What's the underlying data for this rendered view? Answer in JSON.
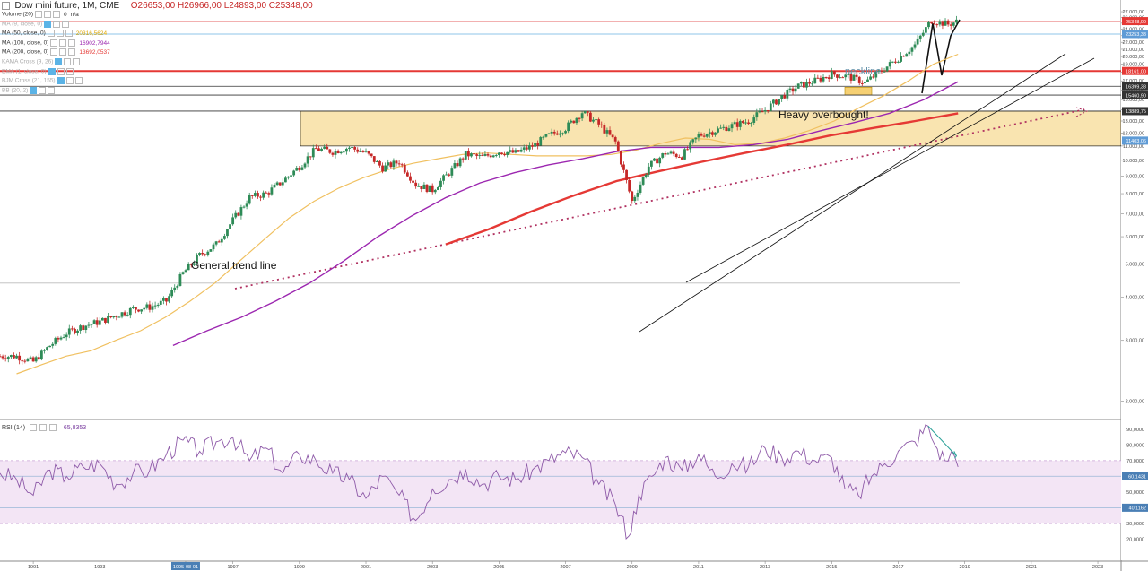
{
  "header": {
    "title": "Dow mini future, 1M, CME",
    "open": "O26653,00",
    "high": "H26966,00",
    "low": "L24893,00",
    "close": "C25348,00"
  },
  "indicators": [
    {
      "label": "Volume (20)",
      "value": "0",
      "value2": "n/a",
      "faded": false
    },
    {
      "label": "MA (9, close, 0)",
      "value": "",
      "faded": true
    },
    {
      "label": "MA (50, close, 0)",
      "value": "20316,5624",
      "color": "#e0a800",
      "faded": false
    },
    {
      "label": "MA (100, close, 0)",
      "value": "16902,7944",
      "color": "#9c27b0",
      "faded": false
    },
    {
      "label": "MA (200, close, 0)",
      "value": "13692,0537",
      "color": "#e53935",
      "faded": false
    },
    {
      "label": "KAMA Cross (9, 26)",
      "value": "",
      "faded": true
    },
    {
      "label": "EMA (1, close, 0)",
      "value": "",
      "faded": true
    },
    {
      "label": "BJM Cross (21, 155)",
      "value": "",
      "faded": true
    },
    {
      "label": "BB (20, 2)",
      "value": "",
      "faded": true
    }
  ],
  "annotations": {
    "neckline": "neckline",
    "overbought": "Heavy overbought!",
    "trend": "General trend line"
  },
  "rsi": {
    "label": "RSI (14)",
    "value": "65,8353"
  },
  "chart_data": {
    "type": "candlestick",
    "title": "Dow mini future, 1M, CME",
    "x_ticks": [
      "1991",
      "1993",
      "1995-08-01",
      "1997",
      "1999",
      "2001",
      "2003",
      "2005",
      "2007",
      "2009",
      "2011",
      "2013",
      "2015",
      "2017",
      "2019",
      "2021",
      "2023"
    ],
    "x_tick_years": [
      1991,
      1993,
      1995.58,
      1997,
      1999,
      2001,
      2003,
      2005,
      2007,
      2009,
      2011,
      2013,
      2015,
      2017,
      2019,
      2021,
      2023
    ],
    "y_ticks": [
      2000,
      3000,
      4000,
      5000,
      6000,
      7000,
      8000,
      9000,
      10000,
      11000,
      12000,
      13000,
      14000,
      15000,
      16000,
      17000,
      18000,
      19000,
      20000,
      21000,
      22000,
      23000,
      24000,
      25000,
      26000,
      27000
    ],
    "price_markers": [
      {
        "value": "25348,00",
        "price": 25348,
        "color": "#e53935"
      },
      {
        "value": "23253,33",
        "price": 23253,
        "color": "#5e9bd6"
      },
      {
        "value": "18161,00",
        "price": 18161,
        "color": "#e53935"
      },
      {
        "value": "16399,38",
        "price": 16399,
        "color": "#333333"
      },
      {
        "value": "15460,90",
        "price": 15461,
        "color": "#333333"
      },
      {
        "value": "13889,75",
        "price": 13890,
        "color": "#333333"
      },
      {
        "value": "11403,06",
        "price": 11403,
        "color": "#5e9bd6"
      }
    ],
    "series": [
      {
        "name": "Dow mini future",
        "type": "candlestick",
        "x": [
          1990.5,
          1991.0,
          1991.5,
          1992.0,
          1992.5,
          1993.0,
          1993.5,
          1994.0,
          1994.5,
          1995.0,
          1995.5,
          1996.0,
          1996.5,
          1997.0,
          1997.5,
          1998.0,
          1998.5,
          1999.0,
          1999.5,
          2000.0,
          2000.5,
          2001.0,
          2001.5,
          2002.0,
          2002.5,
          2003.0,
          2003.5,
          2004.0,
          2004.5,
          2005.0,
          2005.5,
          2006.0,
          2006.5,
          2007.0,
          2007.5,
          2008.0,
          2008.5,
          2009.0,
          2009.5,
          2010.0,
          2010.5,
          2011.0,
          2011.5,
          2012.0,
          2012.5,
          2013.0,
          2013.5,
          2014.0,
          2014.5,
          2015.0,
          2015.5,
          2016.0,
          2016.5,
          2017.0,
          2017.5,
          2018.0,
          2018.5,
          2018.8
        ],
        "y": [
          2700,
          2600,
          2900,
          3150,
          3300,
          3400,
          3550,
          3700,
          3750,
          3900,
          4700,
          5300,
          5700,
          6700,
          7800,
          8000,
          8700,
          9600,
          10800,
          10600,
          10900,
          10500,
          9500,
          9900,
          8500,
          8200,
          9200,
          10400,
          10200,
          10600,
          10500,
          11000,
          11800,
          12400,
          13800,
          12700,
          11300,
          7600,
          9600,
          10500,
          10300,
          11800,
          12200,
          12600,
          13000,
          14000,
          15300,
          16400,
          17000,
          17800,
          17500,
          16800,
          18200,
          19800,
          21600,
          25500,
          24800,
          25348
        ]
      },
      {
        "name": "MA (50, close, 0)",
        "values": [
          2400,
          2550,
          2700,
          2800,
          3000,
          3200,
          3500,
          3900,
          4400,
          5100,
          5900,
          6800,
          7600,
          8300,
          8900,
          9400,
          9800,
          10100,
          10400,
          10500,
          10400,
          10300,
          10300,
          10300,
          10400,
          10700,
          11200,
          11600,
          11500,
          11100,
          11200,
          11600,
          12200,
          13000,
          14200,
          15400,
          17000,
          19000,
          20316
        ]
      },
      {
        "name": "MA (100, close, 0)",
        "values": [
          2900,
          3200,
          3500,
          3900,
          4400,
          5100,
          6000,
          6900,
          7800,
          8600,
          9200,
          9700,
          10100,
          10600,
          10900,
          10900,
          10900,
          11100,
          11500,
          12200,
          12900,
          13700,
          15000,
          16902
        ]
      },
      {
        "name": "MA (200, close, 0)",
        "values": [
          5700,
          6300,
          7100,
          7900,
          8700,
          9300,
          9900,
          10500,
          11100,
          11800,
          12400,
          13000,
          13692
        ]
      }
    ],
    "rsi": {
      "name": "RSI (14)",
      "ylim": [
        0,
        100
      ],
      "y_ticks": [
        20,
        30,
        40,
        50,
        60,
        70,
        80,
        90
      ],
      "markers": [
        {
          "value": "60,1431",
          "y": 60.1
        },
        {
          "value": "40,1162",
          "y": 40.1
        }
      ],
      "bands": [
        30,
        70
      ],
      "x": [
        1990.0,
        1990.5,
        1991.0,
        1991.5,
        1992.0,
        1992.5,
        1993.0,
        1993.5,
        1994.0,
        1994.5,
        1995.0,
        1995.5,
        1996.0,
        1996.5,
        1997.0,
        1997.5,
        1998.0,
        1998.5,
        1999.0,
        1999.5,
        2000.0,
        2000.5,
        2001.0,
        2001.5,
        2002.0,
        2002.5,
        2003.0,
        2003.5,
        2004.0,
        2004.5,
        2005.0,
        2005.5,
        2006.0,
        2006.5,
        2007.0,
        2007.5,
        2008.0,
        2008.5,
        2008.9,
        2009.2,
        2009.6,
        2010.0,
        2010.5,
        2011.0,
        2011.5,
        2012.0,
        2012.5,
        2013.0,
        2013.5,
        2014.0,
        2014.5,
        2015.0,
        2015.4,
        2015.8,
        2016.2,
        2016.6,
        2017.0,
        2017.5,
        2017.9,
        2018.1,
        2018.4,
        2018.6,
        2018.8
      ],
      "values": [
        62,
        58,
        48,
        64,
        60,
        66,
        68,
        55,
        62,
        64,
        74,
        83,
        76,
        82,
        85,
        70,
        78,
        62,
        74,
        70,
        62,
        58,
        46,
        60,
        48,
        32,
        52,
        58,
        64,
        55,
        60,
        58,
        64,
        70,
        75,
        72,
        55,
        42,
        22,
        48,
        60,
        72,
        64,
        74,
        60,
        68,
        66,
        78,
        72,
        76,
        70,
        72,
        52,
        48,
        60,
        68,
        76,
        82,
        92,
        80,
        70,
        76,
        66
      ]
    }
  }
}
